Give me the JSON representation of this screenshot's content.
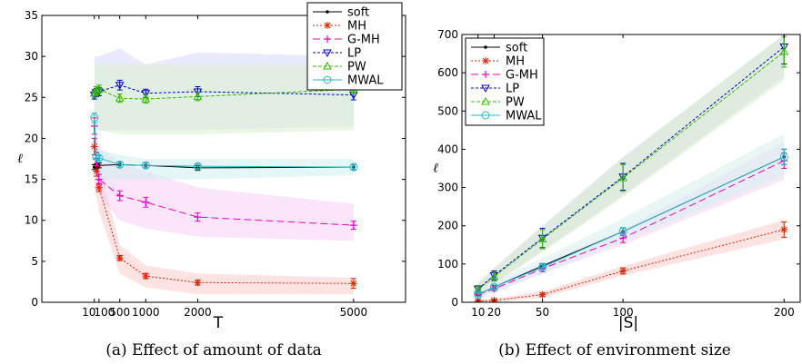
{
  "chart_data": [
    {
      "type": "line",
      "caption": "(a) Effect of amount of data",
      "xlabel": "T",
      "ylabel": "ℓ",
      "xlim": [
        -1000,
        6000
      ],
      "ylim": [
        0,
        35
      ],
      "xticks": [
        10,
        100,
        500,
        1000,
        2000,
        5000
      ],
      "xtick_labels": [
        "10",
        "100",
        "500",
        "1000",
        "2000",
        "5000"
      ],
      "yticks": [
        0,
        5,
        10,
        15,
        20,
        25,
        30,
        35
      ],
      "ytick_labels": [
        "0",
        "5",
        "10",
        "15",
        "20",
        "25",
        "30",
        "35"
      ],
      "x": [
        10,
        50,
        100,
        500,
        1000,
        2000,
        5000
      ],
      "legend_position": "top-right",
      "series": [
        {
          "name": "soft",
          "color": "#000000",
          "dash": "",
          "marker": "dot",
          "values": [
            16.5,
            16.6,
            16.7,
            16.8,
            16.7,
            16.4,
            16.5
          ],
          "err": [
            0.3,
            0.3,
            0.3,
            0.3,
            0.3,
            0.3,
            0.3
          ]
        },
        {
          "name": "MH",
          "color": "#dd2200",
          "dash": "2,2",
          "marker": "star",
          "values": [
            19.0,
            16.0,
            14.0,
            5.4,
            3.2,
            2.4,
            2.3
          ],
          "err": [
            1.0,
            0.6,
            0.5,
            0.3,
            0.3,
            0.3,
            0.6
          ],
          "band": [
            [
              24,
              14
            ],
            [
              19,
              13
            ],
            [
              17,
              11
            ],
            [
              7,
              3.5
            ],
            [
              4.5,
              1.8
            ],
            [
              3.5,
              1.0
            ],
            [
              3.0,
              1.0
            ]
          ],
          "band_color": "#ffcccc"
        },
        {
          "name": "G-MH",
          "color": "#ee00cc",
          "dash": "8,4",
          "marker": "plus",
          "values": [
            21.5,
            17.5,
            15.0,
            13.0,
            12.2,
            10.4,
            9.4
          ],
          "err": [
            1.0,
            0.8,
            0.6,
            0.6,
            0.6,
            0.5,
            0.5
          ],
          "band": [
            [
              25,
              17
            ],
            [
              21,
              15
            ],
            [
              19,
              13
            ],
            [
              17,
              10
            ],
            [
              16,
              9
            ],
            [
              14,
              8
            ],
            [
              12,
              7.5
            ]
          ],
          "band_color": "#f6cff6"
        },
        {
          "name": "LP",
          "color": "#0000cc",
          "dash": "3,2",
          "marker": "triangle-down",
          "values": [
            25.3,
            25.6,
            25.7,
            26.5,
            25.5,
            25.7,
            25.3
          ],
          "err": [
            0.5,
            0.5,
            0.5,
            0.6,
            0.5,
            0.6,
            0.6
          ],
          "band": [
            [
              30,
              21
            ],
            [
              30,
              21
            ],
            [
              30,
              21
            ],
            [
              31,
              21
            ],
            [
              29,
              21
            ],
            [
              30.5,
              21
            ],
            [
              30,
              21.5
            ]
          ],
          "band_color": "#d8d8ff"
        },
        {
          "name": "PW",
          "color": "#33bb00",
          "dash": "4,2",
          "marker": "triangle-up",
          "values": [
            25.5,
            25.8,
            26.0,
            24.9,
            24.8,
            25.1,
            26.0
          ],
          "err": [
            0.5,
            0.5,
            0.5,
            0.5,
            0.5,
            0.5,
            0.5
          ],
          "band": [
            [
              29,
              21
            ],
            [
              29,
              21
            ],
            [
              29,
              21
            ],
            [
              29,
              20.5
            ],
            [
              29,
              20.5
            ],
            [
              29,
              20.5
            ],
            [
              29,
              21
            ]
          ],
          "band_color": "#d8f0cc"
        },
        {
          "name": "MWAL",
          "color": "#22bbcc",
          "dash": "",
          "marker": "circle",
          "values": [
            22.5,
            17.8,
            17.6,
            16.8,
            16.7,
            16.6,
            16.5
          ],
          "err": [
            0.6,
            0.4,
            0.3,
            0.3,
            0.3,
            0.3,
            0.3
          ],
          "band": [
            [
              23.5,
              15
            ],
            [
              19,
              15
            ],
            [
              18.5,
              15
            ],
            [
              18,
              15
            ],
            [
              17.5,
              15
            ],
            [
              17.5,
              15
            ],
            [
              17.5,
              15.5
            ]
          ],
          "band_color": "#cfeeee"
        }
      ]
    },
    {
      "type": "line",
      "caption": "(b) Effect of environment size",
      "xlabel": "|S|",
      "ylabel": "ℓ",
      "xlim": [
        0,
        210
      ],
      "ylim": [
        0,
        700
      ],
      "xticks": [
        10,
        20,
        50,
        100,
        200
      ],
      "xtick_labels": [
        "10",
        "20",
        "50",
        "100",
        "200"
      ],
      "yticks": [
        0,
        100,
        200,
        300,
        400,
        500,
        600,
        700
      ],
      "ytick_labels": [
        "0",
        "100",
        "200",
        "300",
        "400",
        "500",
        "600",
        "700"
      ],
      "x": [
        10,
        20,
        50,
        100,
        200
      ],
      "legend_position": "top-left",
      "series": [
        {
          "name": "soft",
          "color": "#000000",
          "dash": "",
          "marker": "dot",
          "values": [
            20,
            40,
            95,
            185,
            380
          ],
          "err": [
            3,
            4,
            6,
            10,
            20
          ]
        },
        {
          "name": "MH",
          "color": "#dd2200",
          "dash": "2,2",
          "marker": "star",
          "values": [
            3,
            5,
            20,
            82,
            190
          ],
          "err": [
            2,
            2,
            4,
            8,
            20
          ],
          "band": [
            [
              6,
              0
            ],
            [
              10,
              0
            ],
            [
              28,
              12
            ],
            [
              95,
              70
            ],
            [
              215,
              165
            ]
          ],
          "band_color": "#ffcccc"
        },
        {
          "name": "G-MH",
          "color": "#ee00cc",
          "dash": "8,4",
          "marker": "plus",
          "values": [
            20,
            35,
            88,
            168,
            370
          ],
          "err": [
            4,
            5,
            8,
            12,
            20
          ],
          "band": [
            [
              30,
              12
            ],
            [
              45,
              25
            ],
            [
              100,
              75
            ],
            [
              190,
              150
            ],
            [
              420,
              320
            ]
          ],
          "band_color": "#f3d6f3"
        },
        {
          "name": "LP",
          "color": "#0000cc",
          "dash": "3,2",
          "marker": "triangle-down",
          "values": [
            35,
            70,
            168,
            328,
            668
          ],
          "err": [
            8,
            12,
            25,
            35,
            45
          ],
          "band": [
            [
              50,
              22
            ],
            [
              90,
              50
            ],
            [
              200,
              135
            ],
            [
              380,
              280
            ],
            [
              700,
              590
            ]
          ],
          "band_color": "#d4d6e6"
        },
        {
          "name": "PW",
          "color": "#33bb00",
          "dash": "4,2",
          "marker": "triangle-up",
          "values": [
            33,
            67,
            165,
            325,
            655
          ],
          "err": [
            8,
            12,
            25,
            35,
            40
          ],
          "band": [
            [
              48,
              20
            ],
            [
              88,
              48
            ],
            [
              195,
              130
            ],
            [
              375,
              275
            ],
            [
              700,
              580
            ]
          ],
          "band_color": "#d8ecd0"
        },
        {
          "name": "MWAL",
          "color": "#22bbcc",
          "dash": "",
          "marker": "circle",
          "values": [
            20,
            40,
            92,
            185,
            380
          ],
          "err": [
            4,
            5,
            6,
            10,
            20
          ],
          "band": [
            [
              30,
              12
            ],
            [
              55,
              28
            ],
            [
              115,
              75
            ],
            [
              220,
              160
            ],
            [
              440,
              330
            ]
          ],
          "band_color": "#d6eeee"
        }
      ]
    }
  ]
}
